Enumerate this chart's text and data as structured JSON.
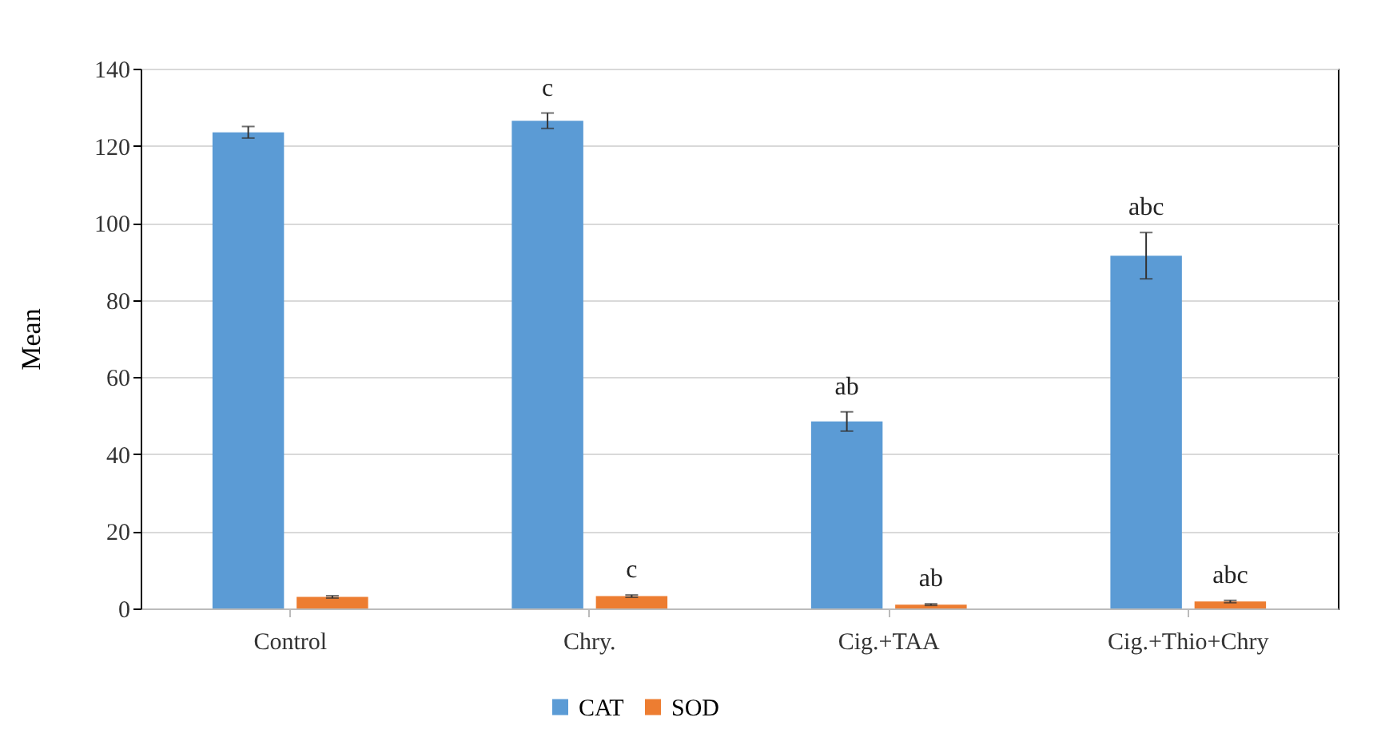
{
  "chart_data": {
    "type": "bar",
    "ylabel": "Mean",
    "categories": [
      "Control",
      "Chry.",
      "Cig.+TAA",
      "Cig.+Thio+Chry"
    ],
    "series": [
      {
        "name": "CAT",
        "color": "#5b9bd5",
        "values": [
          123.5,
          126.5,
          48.5,
          91.5
        ],
        "errors": [
          1.5,
          2,
          2.5,
          6
        ]
      },
      {
        "name": "SOD",
        "color": "#ed7d31",
        "values": [
          3,
          3.2,
          1,
          1.8
        ],
        "errors": [
          0.3,
          0.3,
          0.2,
          0.3
        ]
      }
    ],
    "ylim": [
      0,
      140
    ],
    "yticks": [
      0,
      20,
      40,
      60,
      80,
      100,
      120,
      140
    ],
    "grid": "y",
    "legend": "bottom",
    "annotations": [
      {
        "text": "c",
        "x": "Chry.",
        "y": 126.5
      },
      {
        "text": "c",
        "x": "Chry.",
        "y": 3.5
      },
      {
        "text": "ab",
        "x": "Cig.+TAA",
        "y": 48.5
      },
      {
        "text": "ab",
        "x": "Cig.+TAA",
        "y": 1.2
      },
      {
        "text": "abc",
        "x": "Cig.+Thio+Chry",
        "y": 91.5
      },
      {
        "text": "abc",
        "x": "Cig.+Thio+Chry",
        "y": 2.1
      }
    ]
  }
}
